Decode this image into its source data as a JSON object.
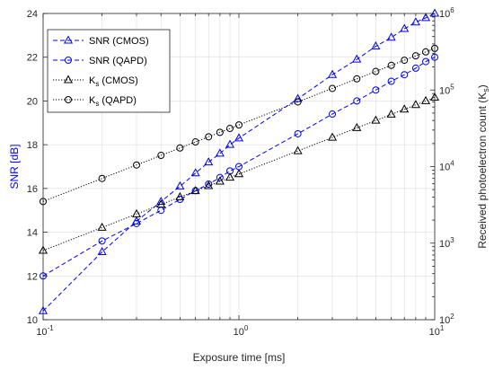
{
  "chart_data": {
    "type": "line",
    "x_scale": "log",
    "xlabel": "Exposure time [ms]",
    "ylabel_left": "SNR [dB]",
    "ylabel_right_prefix": "Received photoelectron count (K",
    "ylabel_right_sub": "s",
    "ylabel_right_suffix": ")",
    "xlim": [
      0.1,
      10
    ],
    "ylim_left": [
      10,
      24
    ],
    "ylim_right": [
      100,
      1000000
    ],
    "y_right_scale": "log",
    "x_ticks": [
      {
        "value": 0.1,
        "base": "10",
        "exp": "-1"
      },
      {
        "value": 1,
        "base": "10",
        "exp": "0"
      },
      {
        "value": 10,
        "base": "10",
        "exp": "1"
      }
    ],
    "y_left_ticks": [
      "10",
      "12",
      "14",
      "16",
      "18",
      "20",
      "22",
      "24"
    ],
    "y_right_ticks": [
      {
        "value": 100,
        "base": "10",
        "exp": "2"
      },
      {
        "value": 1000,
        "base": "10",
        "exp": "3"
      },
      {
        "value": 10000,
        "base": "10",
        "exp": "4"
      },
      {
        "value": 100000,
        "base": "10",
        "exp": "5"
      },
      {
        "value": 1000000,
        "base": "10",
        "exp": "6"
      }
    ],
    "grid": true,
    "legend_position": "top-left",
    "series": [
      {
        "name": "SNR (CMOS)",
        "axis": "left",
        "color": "#0000ff",
        "linestyle": "dashed",
        "marker": "triangle",
        "x": [
          0.1,
          0.2,
          0.3,
          0.4,
          0.5,
          0.6,
          0.7,
          0.8,
          0.9,
          1,
          2,
          3,
          4,
          5,
          6,
          7,
          8,
          9,
          10
        ],
        "y": [
          10.4,
          13.1,
          14.5,
          15.4,
          16.1,
          16.7,
          17.2,
          17.6,
          18.0,
          18.3,
          20.1,
          21.2,
          21.9,
          22.5,
          22.9,
          23.3,
          23.6,
          23.8,
          24.0
        ]
      },
      {
        "name": "SNR (QAPD)",
        "axis": "left",
        "color": "#0000ff",
        "linestyle": "dashed",
        "marker": "circle",
        "x": [
          0.1,
          0.2,
          0.3,
          0.4,
          0.5,
          0.6,
          0.7,
          0.8,
          0.9,
          1,
          2,
          3,
          4,
          5,
          6,
          7,
          8,
          9,
          10
        ],
        "y": [
          12.0,
          13.6,
          14.4,
          15.0,
          15.5,
          15.9,
          16.2,
          16.5,
          16.8,
          17.0,
          18.5,
          19.4,
          20.0,
          20.5,
          20.9,
          21.2,
          21.5,
          21.8,
          22.0
        ]
      },
      {
        "name_main": "K",
        "name_sub": "s",
        "name_suffix": " (CMOS)",
        "axis": "right",
        "color": "#000000",
        "linestyle": "dotted",
        "marker": "triangle",
        "x": [
          0.1,
          0.2,
          0.3,
          0.4,
          0.5,
          0.6,
          0.7,
          0.8,
          0.9,
          1,
          2,
          3,
          4,
          5,
          6,
          7,
          8,
          9,
          10
        ],
        "y": [
          800,
          1600,
          2400,
          3200,
          4000,
          4800,
          5600,
          6400,
          7200,
          8000,
          16000,
          24000,
          32000,
          40000,
          48000,
          56000,
          64000,
          72000,
          80000
        ]
      },
      {
        "name_main": "K",
        "name_sub": "s",
        "name_suffix": " (QAPD)",
        "axis": "right",
        "color": "#000000",
        "linestyle": "dotted",
        "marker": "circle",
        "x": [
          0.1,
          0.2,
          0.3,
          0.4,
          0.5,
          0.6,
          0.7,
          0.8,
          0.9,
          1,
          2,
          3,
          4,
          5,
          6,
          7,
          8,
          9,
          10
        ],
        "y": [
          3500,
          7000,
          10500,
          14000,
          17500,
          21000,
          24500,
          28000,
          31500,
          35000,
          70000,
          105000,
          140000,
          175000,
          210000,
          245000,
          280000,
          315000,
          350000
        ]
      }
    ]
  }
}
